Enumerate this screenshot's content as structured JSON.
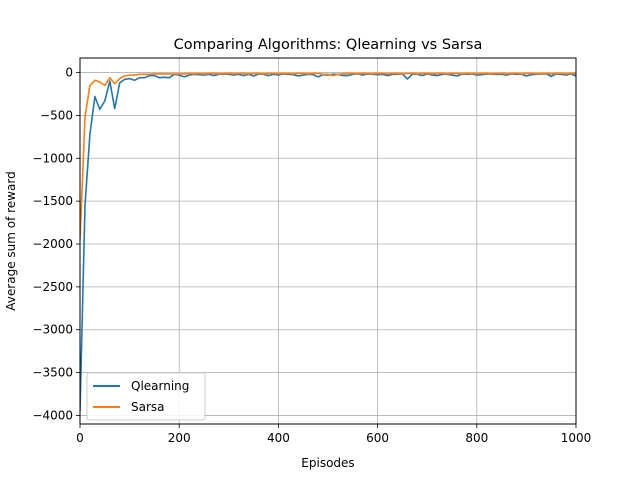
{
  "chart_data": {
    "type": "line",
    "title": "Comparing Algorithms: Qlearning vs Sarsa",
    "xlabel": "Episodes",
    "ylabel": "Average sum of reward",
    "xlim": [
      0,
      1000
    ],
    "ylim": [
      -4100,
      170
    ],
    "xticks": [
      0,
      200,
      400,
      600,
      800,
      1000
    ],
    "yticks": [
      0,
      -500,
      -1000,
      -1500,
      -2000,
      -2500,
      -3000,
      -3500,
      -4000
    ],
    "grid": true,
    "legend": "bottom-left",
    "series": [
      {
        "name": "Qlearning",
        "color": "#1f77b4",
        "x": [
          0,
          10,
          20,
          30,
          40,
          50,
          60,
          70,
          80,
          90,
          100,
          110,
          120,
          130,
          140,
          150,
          160,
          170,
          180,
          190,
          200,
          210,
          220,
          230,
          240,
          250,
          260,
          270,
          280,
          290,
          300,
          310,
          320,
          330,
          340,
          350,
          360,
          370,
          380,
          390,
          400,
          410,
          420,
          430,
          440,
          450,
          460,
          470,
          480,
          490,
          500,
          510,
          520,
          530,
          540,
          550,
          560,
          570,
          580,
          590,
          600,
          610,
          620,
          630,
          640,
          650,
          660,
          670,
          680,
          690,
          700,
          710,
          720,
          730,
          740,
          750,
          760,
          770,
          780,
          790,
          800,
          810,
          820,
          830,
          840,
          850,
          860,
          870,
          880,
          890,
          900,
          910,
          920,
          930,
          940,
          950,
          960,
          970,
          980,
          990,
          1000
        ],
        "y": [
          -3950,
          -1550,
          -720,
          -280,
          -430,
          -330,
          -100,
          -420,
          -120,
          -80,
          -70,
          -90,
          -60,
          -60,
          -35,
          -35,
          -60,
          -55,
          -60,
          -20,
          -30,
          -50,
          -30,
          -20,
          -25,
          -30,
          -20,
          -35,
          -20,
          -15,
          -20,
          -30,
          -20,
          -35,
          -20,
          -40,
          -15,
          -20,
          -35,
          -20,
          -30,
          -15,
          -20,
          -25,
          -40,
          -30,
          -20,
          -25,
          -50,
          -25,
          -30,
          -20,
          -20,
          -35,
          -35,
          -20,
          -15,
          -30,
          -15,
          -20,
          -25,
          -20,
          -35,
          -20,
          -20,
          -15,
          -75,
          -20,
          -20,
          -35,
          -15,
          -30,
          -35,
          -20,
          -20,
          -30,
          -40,
          -20,
          -20,
          -15,
          -30,
          -25,
          -15,
          -20,
          -20,
          -20,
          -30,
          -15,
          -20,
          -20,
          -40,
          -25,
          -20,
          -15,
          -15,
          -45,
          -15,
          -20,
          -30,
          -15,
          -40
        ]
      },
      {
        "name": "Sarsa",
        "color": "#ff7f0e",
        "x": [
          0,
          10,
          20,
          30,
          40,
          50,
          60,
          70,
          80,
          90,
          100,
          110,
          120,
          130,
          140,
          150,
          160,
          170,
          180,
          190,
          200,
          210,
          220,
          230,
          240,
          250,
          260,
          270,
          280,
          290,
          300,
          310,
          320,
          330,
          340,
          350,
          360,
          370,
          380,
          390,
          400,
          410,
          420,
          430,
          440,
          450,
          460,
          470,
          480,
          490,
          500,
          510,
          520,
          530,
          540,
          550,
          560,
          570,
          580,
          590,
          600,
          610,
          620,
          630,
          640,
          650,
          660,
          670,
          680,
          690,
          700,
          710,
          720,
          730,
          740,
          750,
          760,
          770,
          780,
          790,
          800,
          810,
          820,
          830,
          840,
          850,
          860,
          870,
          880,
          890,
          900,
          910,
          920,
          930,
          940,
          950,
          960,
          970,
          980,
          990,
          1000
        ],
        "y": [
          -1950,
          -520,
          -150,
          -90,
          -110,
          -150,
          -60,
          -130,
          -70,
          -40,
          -30,
          -30,
          -20,
          -20,
          -20,
          -15,
          -15,
          -15,
          -15,
          -15,
          -15,
          -15,
          -10,
          -15,
          -10,
          -15,
          -10,
          -10,
          -15,
          -10,
          -10,
          -15,
          -10,
          -10,
          -15,
          -10,
          -10,
          -15,
          -10,
          -10,
          -15,
          -10,
          -10,
          -15,
          -10,
          -10,
          -15,
          -10,
          -10,
          -20,
          -20,
          -35,
          -20,
          -15,
          -10,
          -10,
          -15,
          -10,
          -10,
          -15,
          -10,
          -10,
          -15,
          -10,
          -10,
          -15,
          -10,
          -10,
          -15,
          -10,
          -10,
          -15,
          -10,
          -10,
          -15,
          -10,
          -10,
          -15,
          -10,
          -10,
          -15,
          -10,
          -10,
          -15,
          -10,
          -10,
          -15,
          -10,
          -10,
          -15,
          -10,
          -10,
          -15,
          -10,
          -10,
          -15,
          -10,
          -10,
          -15,
          -10,
          -10
        ]
      }
    ]
  }
}
